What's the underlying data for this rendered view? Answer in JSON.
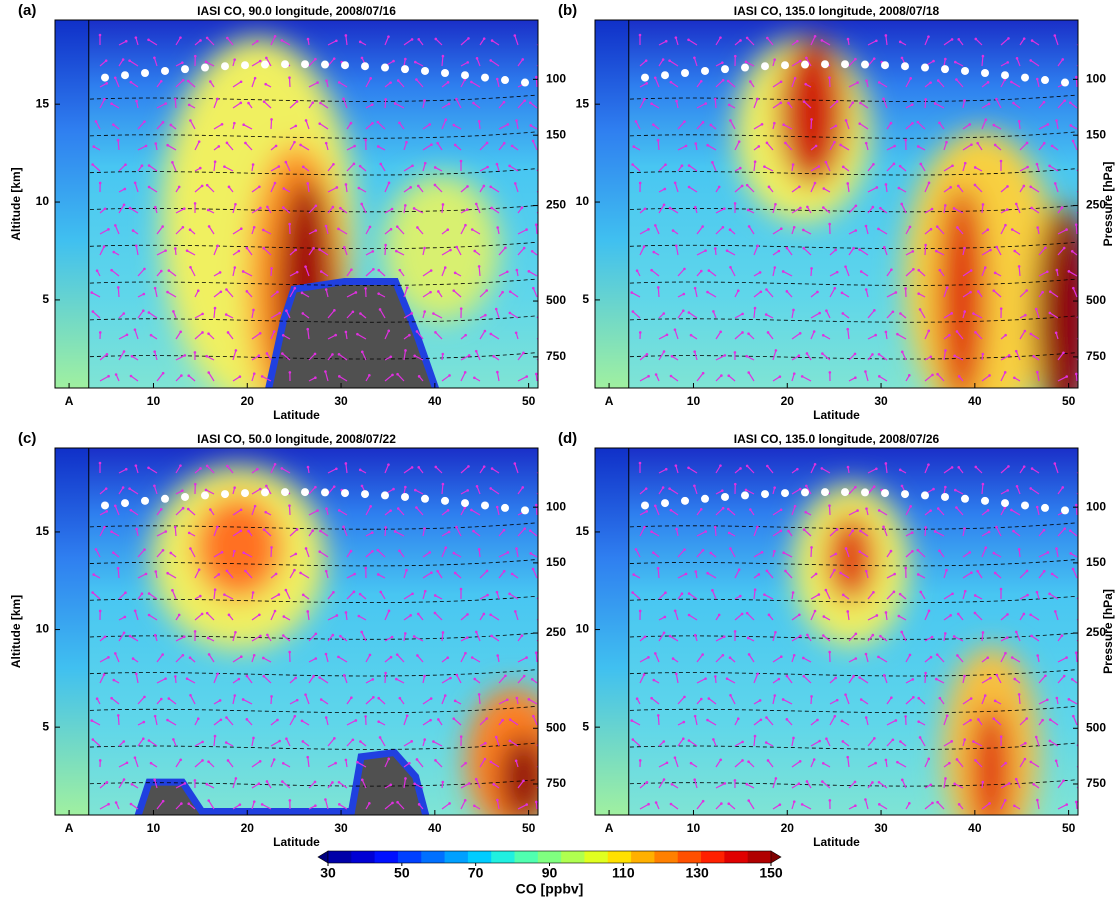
{
  "chart_data": [
    {
      "type": "contour",
      "panel": "(a)",
      "title": "IASI CO, 90.0 longitude, 2008/07/16",
      "xlabel": "Latitude",
      "ylabel": "Altitude [km]",
      "xlim": [
        -0.5,
        51
      ],
      "xticks": [
        {
          "value": 1,
          "label": "A"
        },
        10,
        20,
        30,
        40,
        50
      ],
      "ylim": [
        0.5,
        19.3
      ],
      "yticks": [
        5,
        10,
        15
      ],
      "y2log": true,
      "y2lim": [
        940,
        65
      ],
      "y2ticks": [
        100,
        150,
        250,
        500,
        750
      ]
    },
    {
      "type": "contour",
      "panel": "(b)",
      "title": "IASI CO, 135.0 longitude, 2008/07/18",
      "xlabel": "Latitude",
      "y2label": "Pressure [hPa]",
      "xlim": [
        -0.5,
        51
      ],
      "xticks": [
        {
          "value": 1,
          "label": "A"
        },
        10,
        20,
        30,
        40,
        50
      ],
      "ylim": [
        0.5,
        19.3
      ],
      "yticks": [
        5,
        10,
        15
      ],
      "y2log": true,
      "y2lim": [
        940,
        65
      ],
      "y2ticks": [
        100,
        150,
        250,
        500,
        750
      ]
    },
    {
      "type": "contour",
      "panel": "(c)",
      "title": "IASI CO, 50.0 longitude, 2008/07/22",
      "xlabel": "Latitude",
      "ylabel": "Altitude [km]",
      "xlim": [
        -0.5,
        51
      ],
      "xticks": [
        {
          "value": 1,
          "label": "A"
        },
        10,
        20,
        30,
        40,
        50
      ],
      "ylim": [
        0.5,
        19.3
      ],
      "yticks": [
        5,
        10,
        15
      ],
      "y2log": true,
      "y2lim": [
        940,
        65
      ],
      "y2ticks": [
        100,
        150,
        250,
        500,
        750
      ]
    },
    {
      "type": "contour",
      "panel": "(d)",
      "title": "IASI CO, 135.0 longitude, 2008/07/26",
      "xlabel": "Latitude",
      "y2label": "Pressure [hPa]",
      "xlim": [
        -0.5,
        51
      ],
      "xticks": [
        {
          "value": 1,
          "label": "A"
        },
        10,
        20,
        30,
        40,
        50
      ],
      "ylim": [
        0.5,
        19.3
      ],
      "yticks": [
        5,
        10,
        15
      ],
      "y2log": true,
      "y2lim": [
        940,
        65
      ],
      "y2ticks": [
        100,
        150,
        250,
        500,
        750
      ]
    },
    {
      "type": "colorbar",
      "label": "CO [ppbv]",
      "lim": [
        30,
        150
      ],
      "ticks": [
        30,
        50,
        70,
        90,
        110,
        130,
        150
      ],
      "colors": [
        "#00007f",
        "#0000a8",
        "#0000d4",
        "#0010ff",
        "#0040ff",
        "#0070ff",
        "#00a0ff",
        "#00ccff",
        "#20f0e0",
        "#50ffb0",
        "#80ff80",
        "#b0ff50",
        "#e0ff20",
        "#ffe000",
        "#ffb000",
        "#ff8000",
        "#ff5000",
        "#ff2000",
        "#e00000",
        "#b00000",
        "#800000"
      ]
    }
  ]
}
